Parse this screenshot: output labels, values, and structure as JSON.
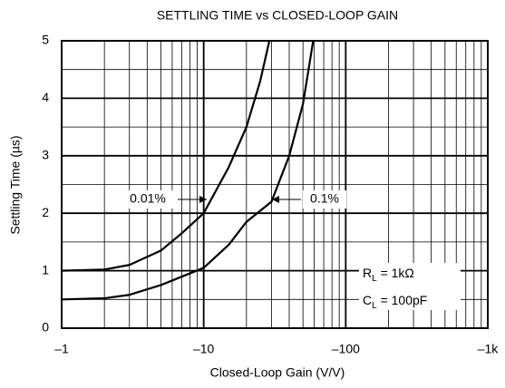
{
  "chart_data": {
    "type": "line",
    "title": "SETTLING TIME vs CLOSED-LOOP GAIN",
    "x_label": "Closed-Loop Gain (V/V)",
    "y_label": "Settling Time (µs)",
    "log_x": true,
    "xlim": [
      -1,
      -1000
    ],
    "xticks": [
      {
        "value": -1,
        "label": "–1"
      },
      {
        "value": -10,
        "label": "–10"
      },
      {
        "value": -100,
        "label": "–100"
      },
      {
        "value": -1000,
        "label": "–1k"
      }
    ],
    "x_minor_grid": [
      -2,
      -3,
      -4,
      -5,
      -6,
      -7,
      -8,
      -9,
      -20,
      -30,
      -40,
      -50,
      -60,
      -70,
      -80,
      -90,
      -200,
      -300,
      -400,
      -500,
      -600,
      -700,
      -800,
      -900
    ],
    "ylim": [
      0,
      5
    ],
    "yticks": [
      0,
      1,
      2,
      3,
      4,
      5
    ],
    "y_minor_grid": [
      0.5,
      1.5,
      2.5,
      3.5,
      4.5
    ],
    "grid": true,
    "series": [
      {
        "color": "#000000",
        "x": [
          -1,
          -2,
          -3,
          -5,
          -7,
          -10,
          -15,
          -20,
          -25,
          -29
        ],
        "values": [
          1,
          1.02,
          1.1,
          1.35,
          1.65,
          2.0,
          2.8,
          3.5,
          4.3,
          5
        ]
      },
      {
        "color": "#000000",
        "x": [
          -1,
          -2,
          -3,
          -5,
          -10,
          -15,
          -20,
          -30,
          -40,
          -50,
          -59
        ],
        "values": [
          0.5,
          0.52,
          0.58,
          0.75,
          1.05,
          1.45,
          1.85,
          2.2,
          3.0,
          3.9,
          5
        ]
      }
    ],
    "annotations": [
      {
        "text": "0.01%"
      },
      {
        "text": "0.1%"
      },
      {
        "text": "R",
        "sub": "L",
        "rest": " = 1kΩ"
      },
      {
        "text": "C",
        "sub": "L",
        "rest": " = 100pF"
      }
    ]
  }
}
